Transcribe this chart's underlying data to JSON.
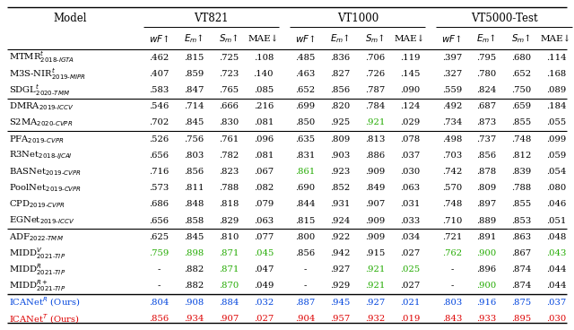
{
  "datasets": [
    "VT821",
    "VT1000",
    "VT5000-Test"
  ],
  "model_labels": [
    "MTMR$^{t}_{\\mathit{2018\\text{-}IGTA}}$",
    "M3S-NIR$^{t}_{\\mathit{2019\\text{-}MIPR}}$",
    "SDGL$^{t}_{\\mathit{2020\\text{-}TMM}}$",
    "DMRA$_{\\mathit{2019\\text{-}ICCV}}$",
    "S2MA$_{\\mathit{2020\\text{-}CVPR}}$",
    "PFA$_{\\mathit{2019\\text{-}CVPR}}$",
    "R3Net$_{\\mathit{2018\\text{-}IJCAI}}$",
    "BASNet$_{\\mathit{2019\\text{-}CVPR}}$",
    "PoolNet$_{\\mathit{2019\\text{-}CVPR}}$",
    "CPD$_{\\mathit{2019\\text{-}CVPR}}$",
    "EGNet$_{\\mathit{2019\\text{-}ICCV}}$",
    "ADF$_{\\mathit{2022\\text{-}TMM}}$",
    "MIDD$^{V}_{\\mathit{2021\\text{-}TIP}}$",
    "MIDD$^{R}_{\\mathit{2021\\text{-}TIP}}$",
    "MIDD$^{R+}_{\\mathit{2021\\text{-}TIP}}$",
    "ICANet$^{R}$ (Ours)",
    "ICANet$^{T}$ (Ours)"
  ],
  "data": {
    "VT821": [
      [
        ".462",
        ".815",
        ".725",
        ".108"
      ],
      [
        ".407",
        ".859",
        ".723",
        ".140"
      ],
      [
        ".583",
        ".847",
        ".765",
        ".085"
      ],
      [
        ".546",
        ".714",
        ".666",
        ".216"
      ],
      [
        ".702",
        ".845",
        ".830",
        ".081"
      ],
      [
        ".526",
        ".756",
        ".761",
        ".096"
      ],
      [
        ".656",
        ".803",
        ".782",
        ".081"
      ],
      [
        ".716",
        ".856",
        ".823",
        ".067"
      ],
      [
        ".573",
        ".811",
        ".788",
        ".082"
      ],
      [
        ".686",
        ".848",
        ".818",
        ".079"
      ],
      [
        ".656",
        ".858",
        ".829",
        ".063"
      ],
      [
        ".625",
        ".845",
        ".810",
        ".077"
      ],
      [
        ".759",
        ".898",
        ".871",
        ".045"
      ],
      [
        "-",
        ".882",
        ".871",
        ".047"
      ],
      [
        "-",
        ".882",
        ".870",
        ".049"
      ],
      [
        ".804",
        ".908",
        ".884",
        ".032"
      ],
      [
        ".856",
        ".934",
        ".907",
        ".027"
      ]
    ],
    "VT1000": [
      [
        ".485",
        ".836",
        ".706",
        ".119"
      ],
      [
        ".463",
        ".827",
        ".726",
        ".145"
      ],
      [
        ".652",
        ".856",
        ".787",
        ".090"
      ],
      [
        ".699",
        ".820",
        ".784",
        ".124"
      ],
      [
        ".850",
        ".925",
        ".921",
        ".029"
      ],
      [
        ".635",
        ".809",
        ".813",
        ".078"
      ],
      [
        ".831",
        ".903",
        ".886",
        ".037"
      ],
      [
        ".861",
        ".923",
        ".909",
        ".030"
      ],
      [
        ".690",
        ".852",
        ".849",
        ".063"
      ],
      [
        ".844",
        ".931",
        ".907",
        ".031"
      ],
      [
        ".815",
        ".924",
        ".909",
        ".033"
      ],
      [
        ".800",
        ".922",
        ".909",
        ".034"
      ],
      [
        ".856",
        ".942",
        ".915",
        ".027"
      ],
      [
        "-",
        ".927",
        ".921",
        ".025"
      ],
      [
        "-",
        ".929",
        ".921",
        ".027"
      ],
      [
        ".887",
        ".945",
        ".927",
        ".021"
      ],
      [
        ".904",
        ".957",
        ".932",
        ".019"
      ]
    ],
    "VT5000-Test": [
      [
        ".397",
        ".795",
        ".680",
        ".114"
      ],
      [
        ".327",
        ".780",
        ".652",
        ".168"
      ],
      [
        ".559",
        ".824",
        ".750",
        ".089"
      ],
      [
        ".492",
        ".687",
        ".659",
        ".184"
      ],
      [
        ".734",
        ".873",
        ".855",
        ".055"
      ],
      [
        ".498",
        ".737",
        ".748",
        ".099"
      ],
      [
        ".703",
        ".856",
        ".812",
        ".059"
      ],
      [
        ".742",
        ".878",
        ".839",
        ".054"
      ],
      [
        ".570",
        ".809",
        ".788",
        ".080"
      ],
      [
        ".748",
        ".897",
        ".855",
        ".046"
      ],
      [
        ".710",
        ".889",
        ".853",
        ".051"
      ],
      [
        ".721",
        ".891",
        ".863",
        ".048"
      ],
      [
        ".762",
        ".900",
        ".867",
        ".043"
      ],
      [
        "-",
        ".896",
        ".874",
        ".044"
      ],
      [
        "-",
        ".900",
        ".874",
        ".044"
      ],
      [
        ".803",
        ".916",
        ".875",
        ".037"
      ],
      [
        ".843",
        ".933",
        ".895",
        ".030"
      ]
    ]
  },
  "green_cells": {
    "VT821": {
      "12": [
        0,
        1,
        2,
        3
      ],
      "13": [
        2
      ],
      "14": [
        2
      ]
    },
    "VT1000": {
      "4": [
        2
      ],
      "7": [
        0
      ],
      "13": [
        2,
        3
      ],
      "14": [
        2
      ]
    },
    "VT5000-Test": {
      "12": [
        0,
        1,
        3
      ],
      "14": [
        1
      ]
    }
  },
  "group_separators": [
    2,
    4,
    10,
    14
  ],
  "bold_separators": [
    14
  ],
  "black": "#000000",
  "green": "#22aa00",
  "blue": "#0044dd",
  "red": "#dd0000"
}
